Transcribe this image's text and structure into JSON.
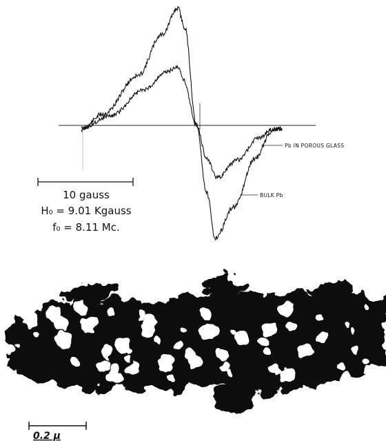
{
  "figure": {
    "trace_labels": {
      "porous": "Pb IN POROUS GLASS",
      "bulk": "BULK Pb"
    },
    "scale_bar": "10 gauss",
    "field": "H₀ = 9.01 Kgauss",
    "frequency": "f₀ = 8.11 Mc.",
    "micrograph_scale": "0.2 μ"
  }
}
